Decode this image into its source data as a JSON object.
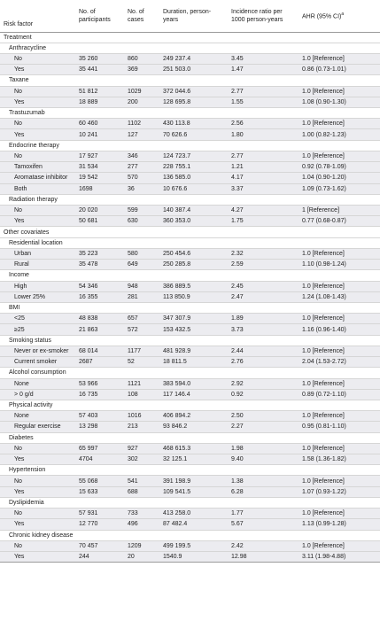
{
  "header": {
    "risk_factor": "Risk factor",
    "participants": "No. of participants",
    "cases": "No. of cases",
    "duration": "Duration, person-years",
    "incidence": "Incidence ratio per 1000 person-years",
    "ahr": "AHR (95% CI)",
    "ahr_sup": "a"
  },
  "rows": [
    {
      "type": "section",
      "label": "Treatment"
    },
    {
      "type": "group",
      "label": "Anthracycline"
    },
    {
      "type": "row",
      "label": "No",
      "participants": "35 260",
      "cases": "860",
      "duration": "249 237.4",
      "incidence": "3.45",
      "ahr": "1.0 [Reference]"
    },
    {
      "type": "row",
      "label": "Yes",
      "participants": "35 441",
      "cases": "369",
      "duration": "251 503.0",
      "incidence": "1.47",
      "ahr": "0.86 (0.73-1.01)"
    },
    {
      "type": "group",
      "label": "Taxane"
    },
    {
      "type": "row",
      "label": "No",
      "participants": "51 812",
      "cases": "1029",
      "duration": "372 044.6",
      "incidence": "2.77",
      "ahr": "1.0 [Reference]"
    },
    {
      "type": "row",
      "label": "Yes",
      "participants": "18 889",
      "cases": "200",
      "duration": "128 695.8",
      "incidence": "1.55",
      "ahr": "1.08 (0.90-1.30)"
    },
    {
      "type": "group",
      "label": "Trastuzumab"
    },
    {
      "type": "row",
      "label": "No",
      "participants": "60 460",
      "cases": "1102",
      "duration": "430 113.8",
      "incidence": "2.56",
      "ahr": "1.0 [Reference]"
    },
    {
      "type": "row",
      "label": "Yes",
      "participants": "10 241",
      "cases": "127",
      "duration": "70 626.6",
      "incidence": "1.80",
      "ahr": "1.00 (0.82-1.23)"
    },
    {
      "type": "group",
      "label": "Endocrine therapy"
    },
    {
      "type": "row",
      "label": "No",
      "participants": "17 927",
      "cases": "346",
      "duration": "124 723.7",
      "incidence": "2.77",
      "ahr": "1.0 [Reference]"
    },
    {
      "type": "row",
      "label": "Tamoxifen",
      "participants": "31 534",
      "cases": "277",
      "duration": "228 755.1",
      "incidence": "1.21",
      "ahr": "0.92 (0.78-1.09)"
    },
    {
      "type": "row",
      "label": "Aromatase inhibitor",
      "participants": "19 542",
      "cases": "570",
      "duration": "136 585.0",
      "incidence": "4.17",
      "ahr": "1.04 (0.90-1.20)"
    },
    {
      "type": "row",
      "label": "Both",
      "participants": "1698",
      "cases": "36",
      "duration": "10 676.6",
      "incidence": "3.37",
      "ahr": "1.09 (0.73-1.62)"
    },
    {
      "type": "group",
      "label": "Radiation therapy"
    },
    {
      "type": "row",
      "label": "No",
      "participants": "20 020",
      "cases": "599",
      "duration": "140 387.4",
      "incidence": "4.27",
      "ahr": "1 [Reference]"
    },
    {
      "type": "row",
      "label": "Yes",
      "participants": "50 681",
      "cases": "630",
      "duration": "360 353.0",
      "incidence": "1.75",
      "ahr": "0.77 (0.68-0.87)"
    },
    {
      "type": "section",
      "label": "Other covariates"
    },
    {
      "type": "group",
      "label": "Residential location"
    },
    {
      "type": "row",
      "label": "Urban",
      "participants": "35 223",
      "cases": "580",
      "duration": "250 454.6",
      "incidence": "2.32",
      "ahr": "1.0 [Reference]"
    },
    {
      "type": "row",
      "label": "Rural",
      "participants": "35 478",
      "cases": "649",
      "duration": "250 285.8",
      "incidence": "2.59",
      "ahr": "1.10 (0.98-1.24)"
    },
    {
      "type": "group",
      "label": "Income"
    },
    {
      "type": "row",
      "label": "High",
      "participants": "54 346",
      "cases": "948",
      "duration": "386 889.5",
      "incidence": "2.45",
      "ahr": "1.0 [Reference]"
    },
    {
      "type": "row",
      "label": "Lower 25%",
      "participants": "16 355",
      "cases": "281",
      "duration": "113 850.9",
      "incidence": "2.47",
      "ahr": "1.24 (1.08-1.43)"
    },
    {
      "type": "group",
      "label": "BMI"
    },
    {
      "type": "row",
      "label": "<25",
      "participants": "48 838",
      "cases": "657",
      "duration": "347 307.9",
      "incidence": "1.89",
      "ahr": "1.0 [Reference]"
    },
    {
      "type": "row",
      "label": "≥25",
      "participants": "21 863",
      "cases": "572",
      "duration": "153 432.5",
      "incidence": "3.73",
      "ahr": "1.16 (0.96-1.40)"
    },
    {
      "type": "group",
      "label": "Smoking status"
    },
    {
      "type": "row",
      "label": "Never or ex-smoker",
      "participants": "68 014",
      "cases": "1177",
      "duration": "481 928.9",
      "incidence": "2.44",
      "ahr": "1.0 [Reference]"
    },
    {
      "type": "row",
      "label": "Current smoker",
      "participants": "2687",
      "cases": "52",
      "duration": "18 811.5",
      "incidence": "2.76",
      "ahr": "2.04 (1.53-2.72)"
    },
    {
      "type": "group",
      "label": "Alcohol consumption"
    },
    {
      "type": "row",
      "label": "None",
      "participants": "53 966",
      "cases": "1121",
      "duration": "383 594.0",
      "incidence": "2.92",
      "ahr": "1.0 [Reference]"
    },
    {
      "type": "row",
      "label": "> 0 g/d",
      "participants": "16 735",
      "cases": "108",
      "duration": "117 146.4",
      "incidence": "0.92",
      "ahr": "0.89 (0.72-1.10)"
    },
    {
      "type": "group",
      "label": "Physical activity"
    },
    {
      "type": "row",
      "label": "None",
      "participants": "57 403",
      "cases": "1016",
      "duration": "406 894.2",
      "incidence": "2.50",
      "ahr": "1.0 [Reference]"
    },
    {
      "type": "row",
      "label": "Regular exercise",
      "participants": "13 298",
      "cases": "213",
      "duration": "93 846.2",
      "incidence": "2.27",
      "ahr": "0.95 (0.81-1.10)"
    },
    {
      "type": "group",
      "label": "Diabetes"
    },
    {
      "type": "row",
      "label": "No",
      "participants": "65 997",
      "cases": "927",
      "duration": "468 615.3",
      "incidence": "1.98",
      "ahr": "1.0 [Reference]"
    },
    {
      "type": "row",
      "label": "Yes",
      "participants": "4704",
      "cases": "302",
      "duration": "32 125.1",
      "incidence": "9.40",
      "ahr": "1.58 (1.36-1.82)"
    },
    {
      "type": "group",
      "label": "Hypertension"
    },
    {
      "type": "row",
      "label": "No",
      "participants": "55 068",
      "cases": "541",
      "duration": "391 198.9",
      "incidence": "1.38",
      "ahr": "1.0 [Reference]"
    },
    {
      "type": "row",
      "label": "Yes",
      "participants": "15 633",
      "cases": "688",
      "duration": "109 541.5",
      "incidence": "6.28",
      "ahr": "1.07 (0.93-1.22)"
    },
    {
      "type": "group",
      "label": "Dyslipidemia"
    },
    {
      "type": "row",
      "label": "No",
      "participants": "57 931",
      "cases": "733",
      "duration": "413 258.0",
      "incidence": "1.77",
      "ahr": "1.0 [Reference]"
    },
    {
      "type": "row",
      "label": "Yes",
      "participants": "12 770",
      "cases": "496",
      "duration": "87 482.4",
      "incidence": "5.67",
      "ahr": "1.13 (0.99-1.28)"
    },
    {
      "type": "group",
      "label": "Chronic kidney disease"
    },
    {
      "type": "row",
      "label": "No",
      "participants": "70 457",
      "cases": "1209",
      "duration": "499 199.5",
      "incidence": "2.42",
      "ahr": "1.0 [Reference]"
    },
    {
      "type": "row",
      "label": "Yes",
      "participants": "244",
      "cases": "20",
      "duration": "1540.9",
      "incidence": "12.98",
      "ahr": "3.11 (1.98-4.88)"
    }
  ]
}
